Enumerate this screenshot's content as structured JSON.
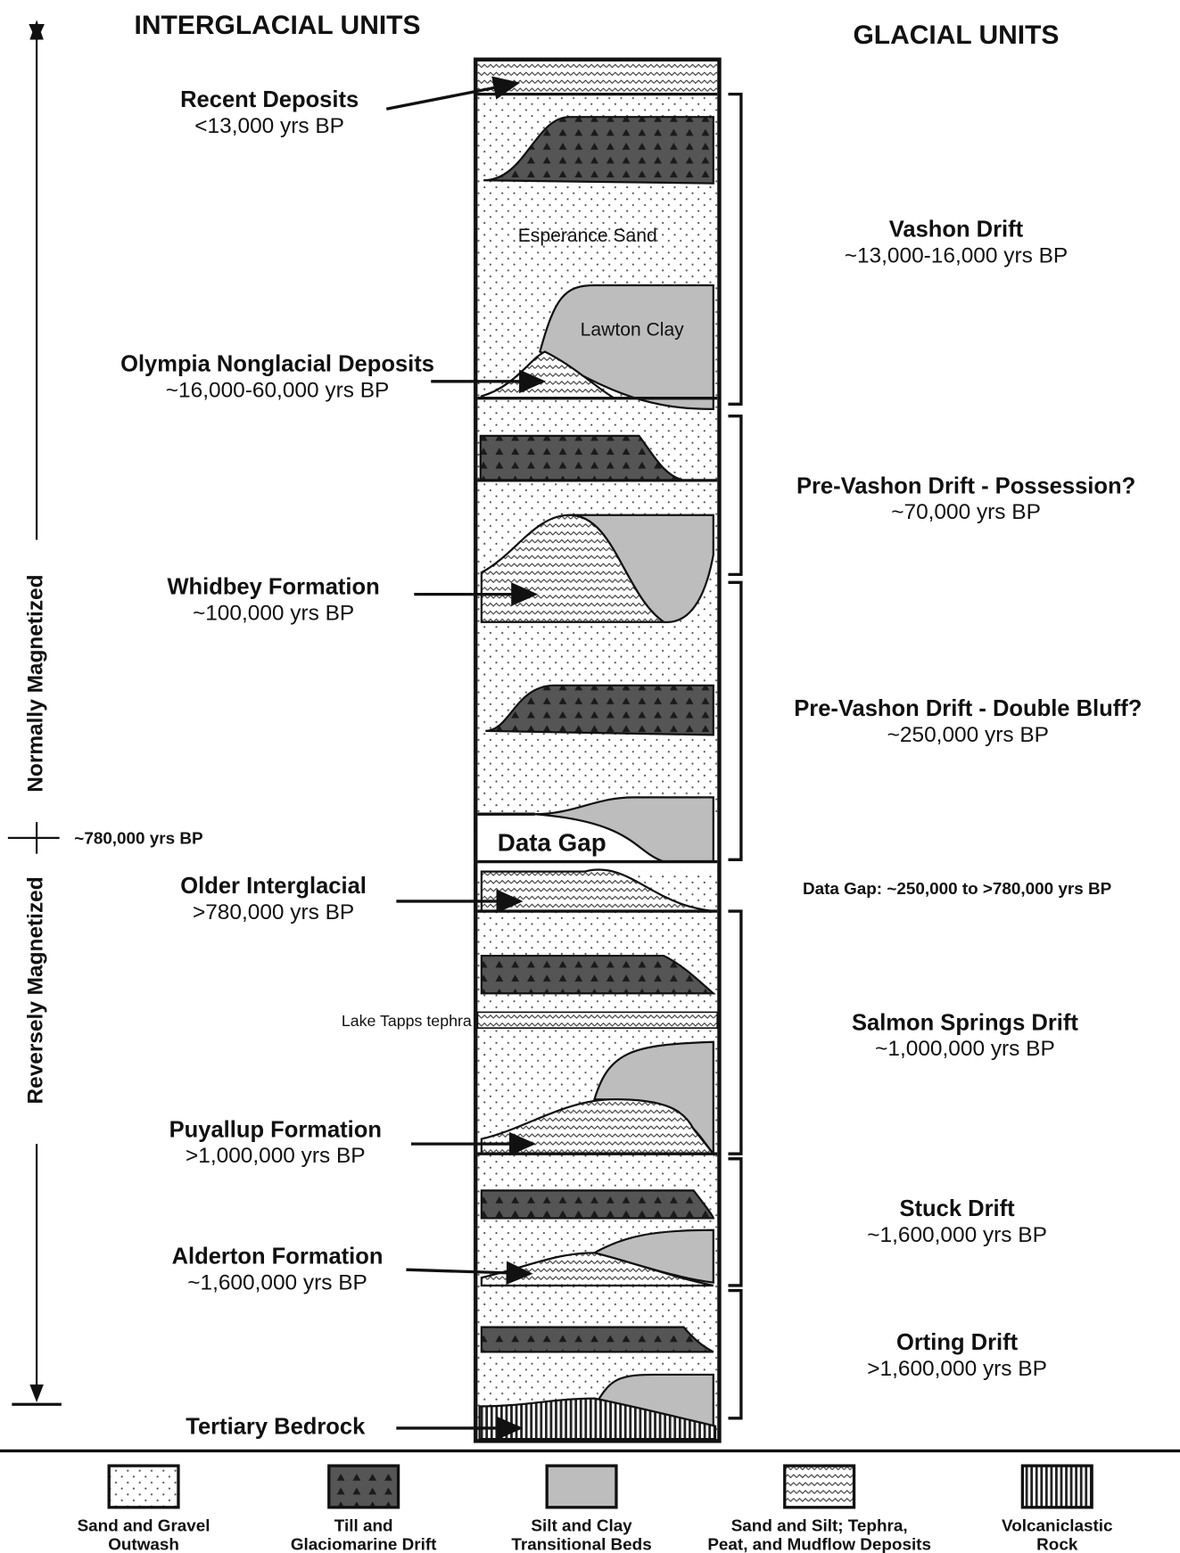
{
  "header": {
    "interglacial_title": "INTERGLACIAL UNITS",
    "glacial_title": "GLACIAL UNITS"
  },
  "magnetization": {
    "normal": "Normally Magnetized",
    "reverse": "Reversely Magnetized",
    "boundary": "~780,000 yrs BP"
  },
  "interglacial_units": [
    {
      "name": "Recent Deposits",
      "age": "<13,000 yrs BP"
    },
    {
      "name": "Olympia Nonglacial Deposits",
      "age": "~16,000-60,000 yrs BP"
    },
    {
      "name": "Whidbey Formation",
      "age": "~100,000 yrs BP"
    },
    {
      "name": "Older Interglacial",
      "age": ">780,000 yrs BP"
    },
    {
      "name": "Puyallup Formation",
      "age": ">1,000,000 yrs BP"
    },
    {
      "name": "Alderton Formation",
      "age": "~1,600,000 yrs BP"
    },
    {
      "name": "Tertiary Bedrock"
    }
  ],
  "glacial_units": [
    {
      "name": "Vashon Drift",
      "age": "~13,000-16,000 yrs BP"
    },
    {
      "name": "Pre-Vashon Drift - Possession?",
      "age": "~70,000 yrs BP"
    },
    {
      "name": "Pre-Vashon Drift - Double Bluff?",
      "age": "~250,000 yrs BP"
    },
    {
      "name": "Salmon Springs Drift",
      "age": "~1,000,000 yrs BP"
    },
    {
      "name": "Stuck Drift",
      "age": "~1,600,000 yrs BP"
    },
    {
      "name": "Orting Drift",
      "age": ">1,600,000 yrs BP"
    }
  ],
  "data_gap_note": "Data Gap:  ~250,000 to >780,000 yrs BP",
  "column_labels": {
    "esperance_sand": "Esperance Sand",
    "lawton_clay": "Lawton Clay",
    "data_gap": "Data Gap",
    "lake_tapps_tephra": "Lake Tapps tephra"
  },
  "legend": [
    {
      "lines": [
        "Sand and Gravel",
        "Outwash"
      ]
    },
    {
      "lines": [
        "Till and",
        "Glaciomarine Drift"
      ]
    },
    {
      "lines": [
        "Silt and Clay",
        "Transitional Beds"
      ]
    },
    {
      "lines": [
        "Sand and Silt; Tephra,",
        "Peat, and Mudflow Deposits"
      ]
    },
    {
      "lines": [
        "Volcaniclastic",
        "Rock"
      ]
    }
  ]
}
